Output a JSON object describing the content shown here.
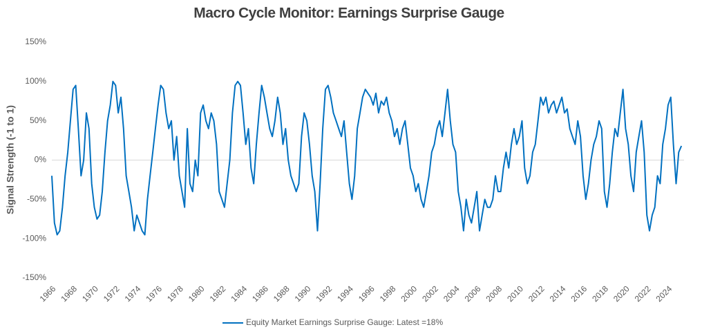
{
  "chart_data": {
    "type": "line",
    "title": "Macro Cycle Monitor: Earnings Surprise Gauge",
    "y_label": "Signal Strength (-1 to 1)",
    "x": [
      1966,
      1966.25,
      1966.5,
      1966.75,
      1967,
      1967.25,
      1967.5,
      1967.75,
      1968,
      1968.25,
      1968.5,
      1968.75,
      1969,
      1969.25,
      1969.5,
      1969.75,
      1970,
      1970.25,
      1970.5,
      1970.75,
      1971,
      1971.25,
      1971.5,
      1971.75,
      1972,
      1972.25,
      1972.5,
      1972.75,
      1973,
      1973.25,
      1973.5,
      1973.75,
      1974,
      1974.25,
      1974.5,
      1974.75,
      1975,
      1975.25,
      1975.5,
      1975.75,
      1976,
      1976.25,
      1976.5,
      1976.75,
      1977,
      1977.25,
      1977.5,
      1977.75,
      1978,
      1978.25,
      1978.5,
      1978.75,
      1979,
      1979.25,
      1979.5,
      1979.75,
      1980,
      1980.25,
      1980.5,
      1980.75,
      1981,
      1981.25,
      1981.5,
      1981.75,
      1982,
      1982.25,
      1982.5,
      1982.75,
      1983,
      1983.25,
      1983.5,
      1983.75,
      1984,
      1984.25,
      1984.5,
      1984.75,
      1985,
      1985.25,
      1985.5,
      1985.75,
      1986,
      1986.25,
      1986.5,
      1986.75,
      1987,
      1987.25,
      1987.5,
      1987.75,
      1988,
      1988.25,
      1988.5,
      1988.75,
      1989,
      1989.25,
      1989.5,
      1989.75,
      1990,
      1990.25,
      1990.5,
      1990.75,
      1991,
      1991.25,
      1991.5,
      1991.75,
      1992,
      1992.25,
      1992.5,
      1992.75,
      1993,
      1993.25,
      1993.5,
      1993.75,
      1994,
      1994.25,
      1994.5,
      1994.75,
      1995,
      1995.25,
      1995.5,
      1995.75,
      1996,
      1996.25,
      1996.5,
      1996.75,
      1997,
      1997.25,
      1997.5,
      1997.75,
      1998,
      1998.25,
      1998.5,
      1998.75,
      1999,
      1999.25,
      1999.5,
      1999.75,
      2000,
      2000.25,
      2000.5,
      2000.75,
      2001,
      2001.25,
      2001.5,
      2001.75,
      2002,
      2002.25,
      2002.5,
      2002.75,
      2003,
      2003.25,
      2003.5,
      2003.75,
      2004,
      2004.25,
      2004.5,
      2004.75,
      2005,
      2005.25,
      2005.5,
      2005.75,
      2006,
      2006.25,
      2006.5,
      2006.75,
      2007,
      2007.25,
      2007.5,
      2007.75,
      2008,
      2008.25,
      2008.5,
      2008.75,
      2009,
      2009.25,
      2009.5,
      2009.75,
      2010,
      2010.25,
      2010.5,
      2010.75,
      2011,
      2011.25,
      2011.5,
      2011.75,
      2012,
      2012.25,
      2012.5,
      2012.75,
      2013,
      2013.25,
      2013.5,
      2013.75,
      2014,
      2014.25,
      2014.5,
      2014.75,
      2015,
      2015.25,
      2015.5,
      2015.75,
      2016,
      2016.25,
      2016.5,
      2016.75,
      2017,
      2017.25,
      2017.5,
      2017.75,
      2018,
      2018.25,
      2018.5,
      2018.75,
      2019,
      2019.25,
      2019.5,
      2019.75,
      2020,
      2020.25,
      2020.5,
      2020.75,
      2021,
      2021.25,
      2021.5,
      2021.75,
      2022,
      2022.25,
      2022.5,
      2022.75,
      2023,
      2023.25,
      2023.5,
      2023.75,
      2024,
      2024.25,
      2024.5,
      2024.75,
      2025,
      2025.25
    ],
    "series": [
      {
        "name": "Equity Market Earnings Surprise Gauge: Latest =18%",
        "color": "#0070c0",
        "values": [
          -20,
          -80,
          -95,
          -90,
          -60,
          -20,
          10,
          50,
          90,
          95,
          40,
          -20,
          0,
          60,
          40,
          -30,
          -60,
          -75,
          -70,
          -40,
          10,
          50,
          70,
          100,
          95,
          60,
          80,
          40,
          -20,
          -40,
          -60,
          -90,
          -70,
          -80,
          -90,
          -95,
          -50,
          -20,
          10,
          40,
          70,
          95,
          90,
          60,
          40,
          50,
          0,
          30,
          -20,
          -40,
          -60,
          40,
          -30,
          -40,
          0,
          -20,
          60,
          70,
          50,
          40,
          60,
          50,
          20,
          -40,
          -50,
          -60,
          -30,
          0,
          60,
          95,
          100,
          95,
          60,
          20,
          40,
          -10,
          -30,
          20,
          60,
          95,
          80,
          60,
          40,
          30,
          50,
          80,
          60,
          20,
          40,
          0,
          -20,
          -30,
          -40,
          -30,
          30,
          60,
          50,
          20,
          -20,
          -40,
          -90,
          -30,
          40,
          90,
          95,
          80,
          60,
          50,
          40,
          30,
          50,
          10,
          -30,
          -50,
          -20,
          40,
          60,
          80,
          90,
          85,
          80,
          70,
          85,
          60,
          75,
          70,
          80,
          60,
          50,
          30,
          40,
          20,
          40,
          50,
          20,
          -10,
          -20,
          -40,
          -30,
          -50,
          -60,
          -40,
          -20,
          10,
          20,
          40,
          50,
          30,
          60,
          90,
          50,
          20,
          10,
          -40,
          -60,
          -90,
          -50,
          -70,
          -80,
          -60,
          -40,
          -90,
          -70,
          -50,
          -60,
          -60,
          -50,
          -20,
          -40,
          -40,
          -10,
          10,
          -10,
          20,
          40,
          20,
          30,
          50,
          -10,
          -30,
          -20,
          10,
          20,
          50,
          80,
          70,
          80,
          60,
          70,
          75,
          60,
          70,
          80,
          60,
          65,
          40,
          30,
          20,
          50,
          30,
          -20,
          -50,
          -30,
          0,
          20,
          30,
          50,
          40,
          -40,
          -60,
          -30,
          10,
          40,
          30,
          60,
          90,
          40,
          20,
          -20,
          -40,
          10,
          30,
          50,
          10,
          -70,
          -90,
          -70,
          -60,
          -20,
          -30,
          20,
          40,
          70,
          80,
          20,
          -30,
          10,
          18
        ]
      }
    ],
    "xlim": [
      1966,
      2025.5
    ],
    "xticks": [
      1966,
      1968,
      1970,
      1972,
      1974,
      1976,
      1978,
      1980,
      1982,
      1984,
      1986,
      1988,
      1990,
      1992,
      1994,
      1996,
      1998,
      2000,
      2002,
      2004,
      2006,
      2008,
      2010,
      2012,
      2014,
      2016,
      2018,
      2020,
      2022,
      2024
    ],
    "ylim": [
      -150,
      150
    ],
    "yticks": [
      {
        "value": -150,
        "label": "-150%"
      },
      {
        "value": -100,
        "label": "-100%"
      },
      {
        "value": -50,
        "label": "-50%"
      },
      {
        "value": 0,
        "label": "0%"
      },
      {
        "value": 50,
        "label": "50%"
      },
      {
        "value": 100,
        "label": "100%"
      },
      {
        "value": 150,
        "label": "150%"
      }
    ],
    "zero_line": true,
    "legend": "bottom"
  }
}
